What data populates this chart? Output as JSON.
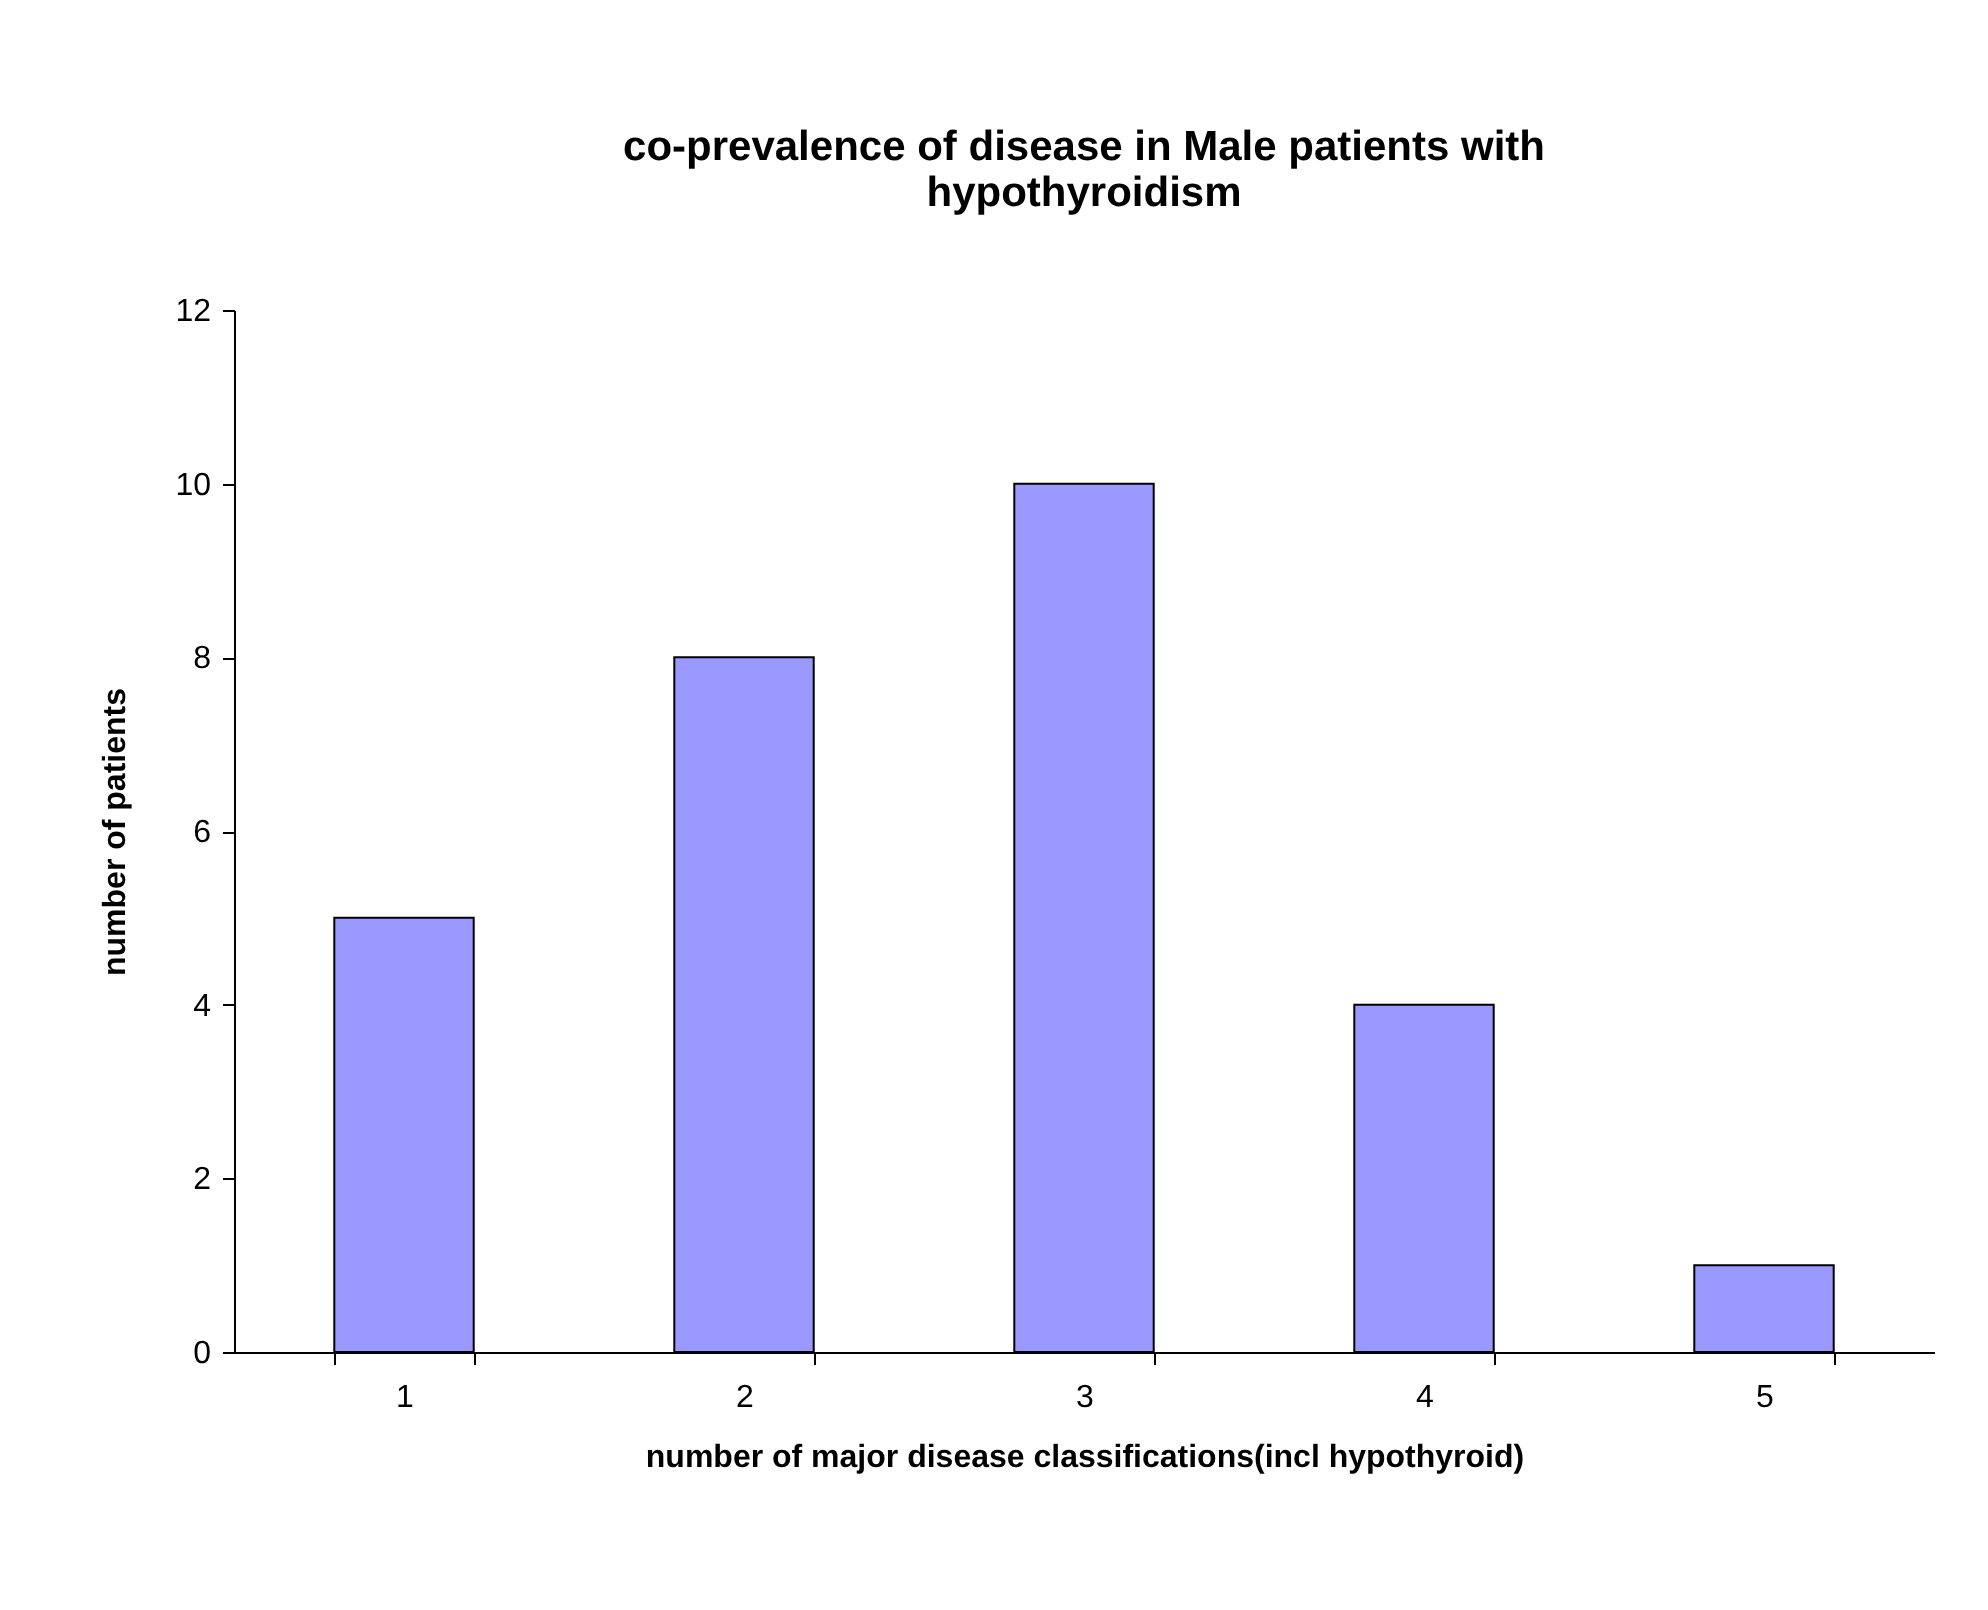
{
  "chart_data": {
    "type": "bar",
    "title": "co-prevalence of disease in Male patients with hypothyroidism",
    "xlabel": "number of major disease classifications(incl hypothyroid)",
    "ylabel": "number of patients",
    "categories": [
      "1",
      "2",
      "3",
      "4",
      "5"
    ],
    "values": [
      5,
      8,
      10,
      4,
      1
    ],
    "color": "#9999ff",
    "ylim": [
      0,
      12
    ],
    "yticks": [
      0,
      2,
      4,
      6,
      8,
      10,
      12
    ],
    "grid": false
  }
}
